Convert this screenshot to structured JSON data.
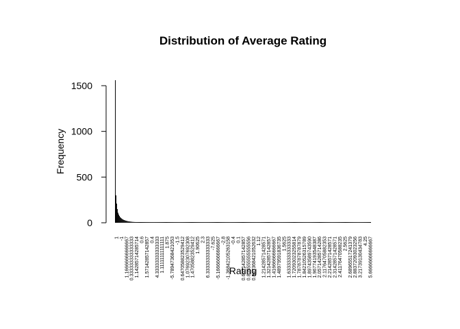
{
  "chart_data": {
    "type": "bar",
    "title": "Distribution of Average Rating",
    "xlabel": "Rating",
    "ylabel": "Frequency",
    "ylim": [
      0,
      1600
    ],
    "yticks": [
      0,
      500,
      1000,
      1500
    ],
    "x_tick_labels": [
      "1",
      "-1",
      "1.16666666666667",
      "0.333333333333333",
      "1.14285714285714",
      "0.6",
      "1.57142857142857",
      "0.4",
      "4.33333333333333",
      "1.11111111111111",
      "1.875",
      "-5.78947368421053",
      "-1.5",
      "0.647058823529412",
      "1.07692307692308",
      "1.47058823529412",
      "1.90625",
      "2.3",
      "6.33333333333333",
      "-7.625",
      "-5.16666666666667",
      "-2.8",
      "-1.36842105263158",
      "-0.4",
      "0.1",
      "0.607142857142857",
      "0.805555555555556",
      "0.947368421052632",
      "1.12",
      "1.21428571428571",
      "1.32142857142857",
      "1.41666666666667",
      "1.48979591836735",
      "1.5625",
      "1.63333333333333",
      "1.72093023255814",
      "1.78787878787879",
      "1.84210526315789",
      "1.89743589743590",
      "1.96774193548387",
      "2.05714285714286",
      "2.11764705882353",
      "2.21428571428571",
      "2.31428571428571",
      "2.41176470588235",
      "2.5625",
      "2.68965517241379",
      "2.88372093023256",
      "3.21739130434783",
      "4.25",
      "5.66666666666667"
    ],
    "values": [
      1560,
      300,
      210,
      150,
      110,
      90,
      75,
      62,
      55,
      48,
      42,
      37,
      33,
      30,
      27,
      24,
      22,
      20,
      18,
      16,
      15,
      14,
      13,
      12,
      11,
      10,
      9,
      9,
      8,
      8,
      7,
      7,
      6,
      6,
      6,
      5,
      5,
      5,
      5,
      4,
      4,
      4,
      4,
      4,
      3,
      3,
      3,
      3,
      3,
      3,
      3,
      3,
      2,
      2,
      2,
      2,
      2,
      2,
      2,
      2,
      2,
      2,
      2,
      2,
      2,
      1,
      1,
      1,
      1,
      1,
      1,
      1,
      1,
      1,
      1,
      1,
      1,
      1,
      1,
      1,
      1,
      1,
      1,
      1,
      1,
      1,
      1,
      1,
      1,
      1,
      1,
      1,
      1,
      1,
      1,
      1,
      1,
      1,
      1,
      1,
      1,
      1,
      1,
      1,
      1,
      1,
      1,
      1,
      1,
      1,
      1,
      1,
      1,
      1,
      1,
      1,
      1,
      1,
      1,
      1,
      1,
      1,
      1,
      1,
      1,
      1,
      1,
      1,
      1,
      1,
      1,
      1,
      1,
      1,
      1,
      1,
      1,
      1,
      1,
      1,
      1,
      1,
      1,
      1,
      1,
      1,
      1,
      1,
      1,
      1,
      1,
      1,
      1,
      1,
      1,
      1,
      1,
      1,
      1,
      1,
      1,
      1,
      1,
      1,
      1,
      1,
      1,
      1,
      1,
      1,
      1,
      1,
      1,
      1,
      1,
      1,
      1,
      1,
      1,
      1,
      1,
      1,
      1,
      1,
      1,
      1,
      1,
      1,
      1,
      1,
      1,
      1,
      1,
      1,
      1,
      1,
      1,
      1,
      1,
      1,
      1,
      1,
      1,
      1,
      1,
      1,
      1,
      1,
      1,
      1,
      1,
      1,
      1,
      1,
      1,
      1,
      1,
      1,
      1,
      1,
      1,
      1,
      1,
      1,
      1,
      1,
      1,
      1,
      1,
      1,
      1,
      1,
      1,
      1,
      1,
      1,
      1,
      1,
      1,
      1,
      1,
      1,
      1,
      1,
      1,
      1,
      1,
      1,
      1,
      1,
      1,
      1,
      1,
      1,
      1,
      1,
      1,
      1,
      1,
      1,
      1,
      1,
      1,
      1,
      1,
      1,
      1,
      1,
      1,
      1,
      1,
      1,
      1,
      1,
      1,
      1,
      1,
      1,
      1,
      1,
      1,
      1,
      1,
      1,
      1,
      1,
      1,
      1,
      1,
      1,
      1,
      1,
      1,
      1,
      1,
      1,
      1,
      1,
      1,
      1,
      1,
      1,
      1,
      1,
      1,
      1,
      1,
      1,
      1,
      1,
      1,
      1,
      1,
      1,
      1,
      1,
      1,
      1,
      1,
      1,
      1,
      1,
      1,
      1,
      1,
      1,
      1,
      1,
      1,
      1,
      1,
      1,
      1,
      1,
      1,
      1,
      1,
      1,
      1,
      1,
      1,
      1,
      1,
      1,
      1,
      1,
      1,
      1,
      1,
      1,
      1,
      1,
      1,
      1,
      1,
      1,
      1,
      1,
      1,
      1,
      1,
      1,
      1,
      1,
      1,
      1,
      1,
      1,
      1,
      1,
      1,
      1,
      1,
      1,
      1,
      1,
      1,
      1,
      1
    ],
    "grid": false,
    "legend": "none",
    "bar_color": "#000000"
  }
}
